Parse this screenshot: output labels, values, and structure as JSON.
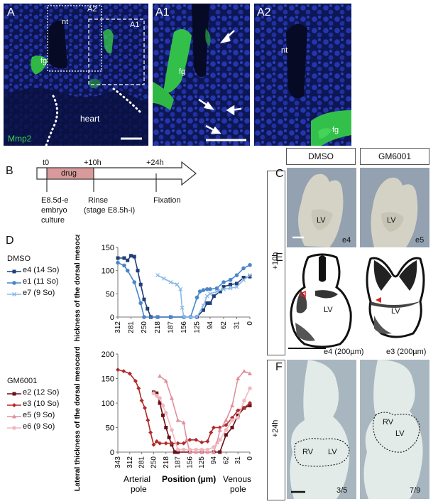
{
  "panel_labels": {
    "A": "A",
    "A1": "A1",
    "A2": "A2",
    "B": "B",
    "C": "C",
    "D": "D",
    "E": "E",
    "F": "F"
  },
  "panelA": {
    "inset_a2": "A2",
    "inset_a1": "A1",
    "nt": "nt",
    "fg": "fg",
    "heart": "heart",
    "marker": "Mmp2"
  },
  "panelA1": {
    "fg": "fg"
  },
  "panelA2": {
    "nt": "nt",
    "fg": "fg"
  },
  "timeline": {
    "t0": "t0",
    "t10": "+10h",
    "t24": "+24h",
    "drug": "drug",
    "step1": [
      "E8.5d-e",
      "embryo",
      "culture"
    ],
    "step2": [
      "Rinse",
      "(stage E8.5h-i)"
    ],
    "step3": "Fixation"
  },
  "headers": {
    "dmso": "DMSO",
    "gm": "GM6001"
  },
  "rows": {
    "r10": "+10h",
    "r24": "+24h"
  },
  "panelC": {
    "left_lv": "LV",
    "left_id": "e4",
    "right_lv": "LV",
    "right_id": "e5"
  },
  "panelE": {
    "left_lv": "LV",
    "left_id": "e4 (200µm)",
    "right_lv": "LV",
    "right_id": "e3 (200µm)"
  },
  "panelF": {
    "left_rv": "RV",
    "left_lv": "LV",
    "left_count": "3/5",
    "right_rv": "RV",
    "right_lv": "LV",
    "right_count": "7/9"
  },
  "colors": {
    "fluor_green": "#3ad44a",
    "nuclei_blue": "#1a2a9a",
    "drug_bar": "#d89a9a",
    "arrow_red": "#e02020"
  },
  "chart_data": [
    {
      "type": "line",
      "legend_title": "DMSO",
      "ylabel": "Lateral thickness of the dorsal mesocardium (µm)",
      "xlabel": "",
      "x_ticks": [
        312,
        281,
        250,
        218,
        187,
        156,
        125,
        94,
        62,
        31,
        0
      ],
      "x_reversed": true,
      "xlim": [
        312,
        0
      ],
      "ylim": [
        0,
        150
      ],
      "y_ticks": [
        0,
        50,
        100,
        150
      ],
      "series": [
        {
          "name": "e4 (14 So)",
          "color": "#1f3f78",
          "marker": "square",
          "points": [
            [
              312,
              127
            ],
            [
              297,
              127
            ],
            [
              289,
              122
            ],
            [
              281,
              132
            ],
            [
              273,
              130
            ],
            [
              265,
              100
            ],
            [
              258,
              70
            ],
            [
              250,
              38
            ],
            [
              242,
              18
            ],
            [
              234,
              0
            ],
            [
              218,
              0
            ],
            [
              187,
              0
            ],
            [
              156,
              0
            ],
            [
              125,
              0
            ],
            [
              110,
              15
            ],
            [
              101,
              30
            ],
            [
              94,
              30
            ],
            [
              85,
              45
            ],
            [
              70,
              55
            ],
            [
              62,
              65
            ],
            [
              46,
              70
            ],
            [
              31,
              72
            ],
            [
              15,
              85
            ],
            [
              0,
              87
            ]
          ]
        },
        {
          "name": "e1 (11 So)",
          "color": "#4a86c8",
          "marker": "circle",
          "points": [
            [
              312,
              117
            ],
            [
              297,
              111
            ],
            [
              289,
              100
            ],
            [
              273,
              75
            ],
            [
              258,
              30
            ],
            [
              250,
              0
            ],
            [
              218,
              0
            ],
            [
              187,
              0
            ],
            [
              156,
              0
            ],
            [
              140,
              0
            ],
            [
              125,
              42
            ],
            [
              118,
              55
            ],
            [
              110,
              58
            ],
            [
              101,
              60
            ],
            [
              94,
              60
            ],
            [
              78,
              62
            ],
            [
              62,
              75
            ],
            [
              46,
              80
            ],
            [
              31,
              90
            ],
            [
              15,
              105
            ],
            [
              0,
              112
            ]
          ]
        },
        {
          "name": "e7 (9 So)",
          "color": "#8ab8e8",
          "marker": "cross",
          "points": [
            [
              218,
              90
            ],
            [
              203,
              83
            ],
            [
              187,
              75
            ],
            [
              172,
              70
            ],
            [
              164,
              60
            ],
            [
              160,
              20
            ],
            [
              156,
              0
            ],
            [
              140,
              0
            ],
            [
              125,
              0
            ],
            [
              110,
              25
            ],
            [
              101,
              45
            ],
            [
              94,
              50
            ],
            [
              78,
              55
            ],
            [
              62,
              60
            ],
            [
              46,
              62
            ],
            [
              31,
              65
            ],
            [
              15,
              80
            ],
            [
              0,
              90
            ]
          ]
        }
      ]
    },
    {
      "type": "line",
      "legend_title": "GM6001",
      "ylabel": "Lateral thickness of the dorsal mesocardium (µm)",
      "xlabel": "Position (µm)",
      "x_left_label": [
        "Arterial",
        "pole"
      ],
      "x_right_label": [
        "Venous",
        "pole"
      ],
      "x_ticks": [
        343,
        312,
        281,
        250,
        218,
        187,
        156,
        125,
        94,
        62,
        31,
        0
      ],
      "x_reversed": true,
      "xlim": [
        343,
        0
      ],
      "ylim": [
        0,
        200
      ],
      "y_ticks": [
        0,
        50,
        100,
        150,
        200
      ],
      "series": [
        {
          "name": "e2 (12 So)",
          "color": "#6a0f14",
          "marker": "square",
          "points": [
            [
              250,
              122
            ],
            [
              242,
              120
            ],
            [
              234,
              100
            ],
            [
              226,
              75
            ],
            [
              218,
              50
            ],
            [
              210,
              30
            ],
            [
              203,
              15
            ],
            [
              195,
              0
            ],
            [
              187,
              0
            ],
            [
              156,
              0
            ],
            [
              125,
              0
            ],
            [
              94,
              0
            ],
            [
              78,
              0
            ],
            [
              62,
              35
            ],
            [
              46,
              50
            ],
            [
              31,
              75
            ],
            [
              15,
              90
            ],
            [
              0,
              95
            ]
          ]
        },
        {
          "name": "e3 (10 So)",
          "color": "#b02a2a",
          "marker": "diamond",
          "points": [
            [
              343,
              168
            ],
            [
              328,
              165
            ],
            [
              312,
              160
            ],
            [
              297,
              145
            ],
            [
              289,
              130
            ],
            [
              281,
              105
            ],
            [
              273,
              90
            ],
            [
              265,
              65
            ],
            [
              258,
              40
            ],
            [
              250,
              15
            ],
            [
              242,
              22
            ],
            [
              234,
              18
            ],
            [
              218,
              18
            ],
            [
              203,
              18
            ],
            [
              187,
              18
            ],
            [
              172,
              18
            ],
            [
              156,
              25
            ],
            [
              140,
              25
            ],
            [
              125,
              20
            ],
            [
              110,
              22
            ],
            [
              101,
              40
            ],
            [
              94,
              50
            ],
            [
              78,
              50
            ],
            [
              62,
              55
            ],
            [
              46,
              70
            ],
            [
              31,
              85
            ],
            [
              15,
              90
            ],
            [
              0,
              100
            ]
          ]
        },
        {
          "name": "e5 (9 So)",
          "color": "#e0909c",
          "marker": "triangle",
          "points": [
            [
              234,
              155
            ],
            [
              218,
              145
            ],
            [
              203,
              110
            ],
            [
              187,
              65
            ],
            [
              172,
              60
            ],
            [
              164,
              25
            ],
            [
              156,
              0
            ],
            [
              140,
              0
            ],
            [
              125,
              0
            ],
            [
              110,
              0
            ],
            [
              94,
              0
            ],
            [
              85,
              20
            ],
            [
              78,
              45
            ],
            [
              62,
              65
            ],
            [
              46,
              95
            ],
            [
              31,
              150
            ],
            [
              15,
              165
            ],
            [
              0,
              160
            ]
          ]
        },
        {
          "name": "e6 (9 So)",
          "color": "#f0b8c0",
          "marker": "circle",
          "points": [
            [
              250,
              120
            ],
            [
              242,
              115
            ],
            [
              234,
              110
            ],
            [
              226,
              95
            ],
            [
              218,
              80
            ],
            [
              203,
              45
            ],
            [
              187,
              5
            ],
            [
              172,
              5
            ],
            [
              156,
              5
            ],
            [
              140,
              5
            ],
            [
              125,
              5
            ],
            [
              110,
              5
            ],
            [
              94,
              10
            ],
            [
              78,
              25
            ],
            [
              62,
              45
            ],
            [
              46,
              65
            ],
            [
              31,
              70
            ],
            [
              15,
              105
            ],
            [
              0,
              130
            ]
          ]
        }
      ]
    }
  ]
}
